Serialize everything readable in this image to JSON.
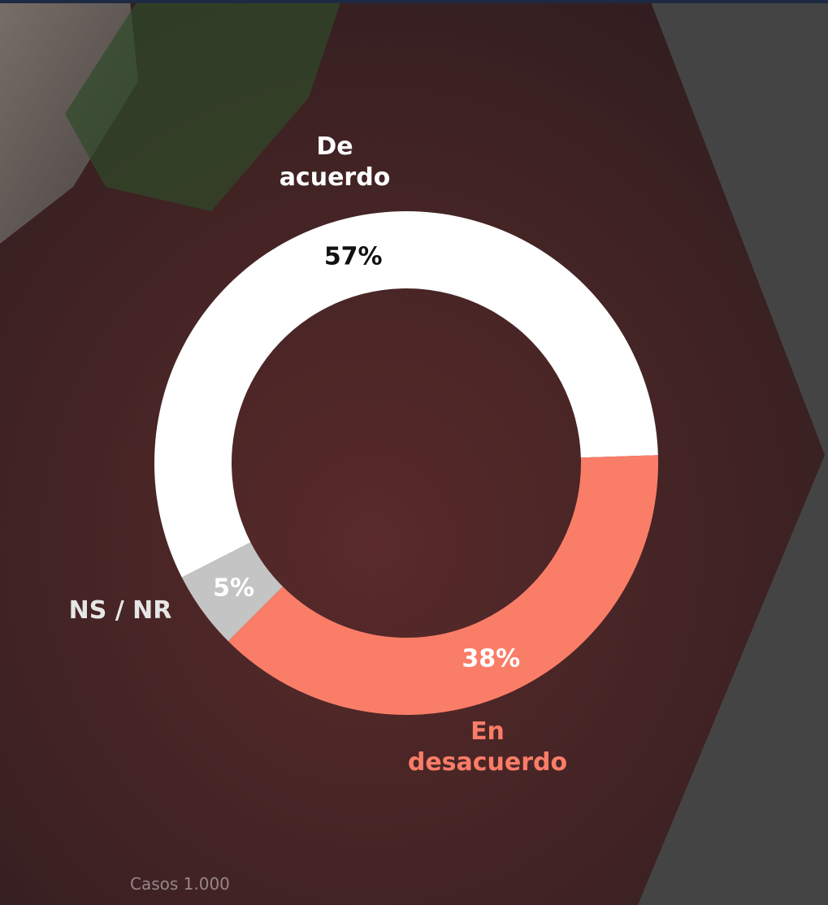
{
  "chart_data": {
    "type": "donut",
    "categories": [
      "De acuerdo",
      "En desacuerdo",
      "NS / NR"
    ],
    "values": [
      57,
      38,
      5
    ],
    "value_labels": [
      "57%",
      "38%",
      "5%"
    ],
    "colors": [
      "#ffffff",
      "#fa7d68",
      "#c4c4c4"
    ],
    "label_colors": [
      "#ffffff",
      "#fa7d68",
      "#e6e6e6"
    ],
    "note": "Casos 1.000"
  }
}
